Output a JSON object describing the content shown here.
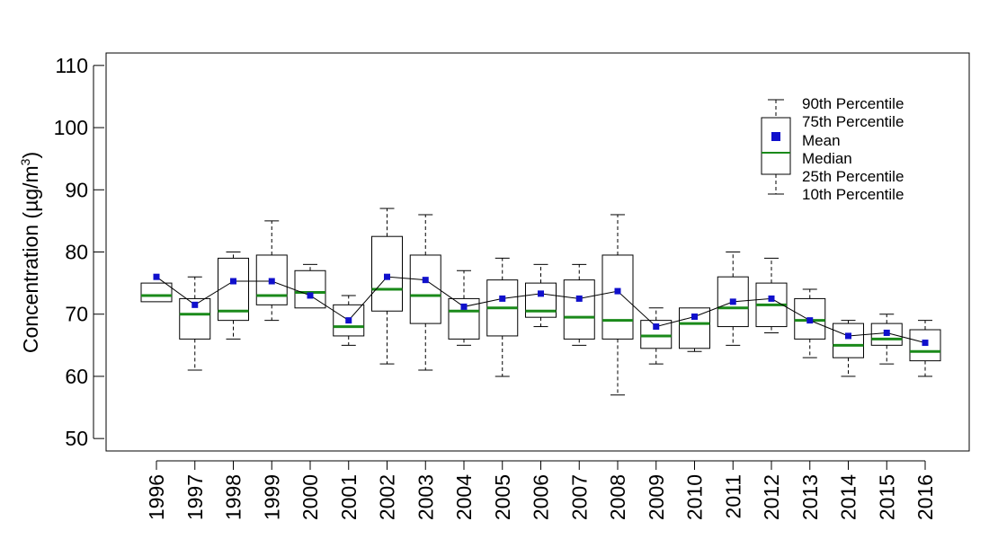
{
  "chart_data": {
    "type": "box",
    "title": "",
    "xlabel": "",
    "ylabel": "Concentration (µg/m",
    "ylabel_superscript": "3",
    "ylabel_close": ")",
    "ylim": [
      48,
      112
    ],
    "yticks": [
      50,
      60,
      70,
      80,
      90,
      100,
      110
    ],
    "categories": [
      "1996",
      "1997",
      "1998",
      "1999",
      "2000",
      "2001",
      "2002",
      "2003",
      "2004",
      "2005",
      "2006",
      "2007",
      "2008",
      "2009",
      "2010",
      "2011",
      "2012",
      "2013",
      "2014",
      "2015",
      "2016"
    ],
    "p10": [
      72,
      61,
      66,
      69,
      71,
      65,
      62,
      61,
      65,
      60,
      68,
      65,
      57,
      62,
      64,
      65,
      67,
      63,
      60,
      62,
      60
    ],
    "p25": [
      72,
      66,
      69,
      71.5,
      71,
      66.5,
      70.5,
      68.5,
      66,
      66.5,
      69.5,
      66,
      66,
      64.5,
      64.5,
      68,
      68,
      66,
      63,
      65,
      62.5
    ],
    "median": [
      73,
      70,
      70.5,
      73,
      73.5,
      68,
      74,
      73,
      70.5,
      71,
      70.5,
      69.5,
      69,
      66.5,
      68.5,
      71,
      71.5,
      69,
      65,
      66,
      64
    ],
    "p75": [
      75,
      72.5,
      79,
      79.5,
      77,
      71.5,
      82.5,
      79.5,
      72.5,
      75.5,
      75,
      75.5,
      79.5,
      69,
      71,
      76,
      75,
      72.5,
      68.5,
      68.5,
      67.5
    ],
    "p90": [
      75,
      76,
      80,
      85,
      78,
      73,
      87,
      86,
      77,
      79,
      78,
      78,
      86,
      71,
      71,
      80,
      79,
      74,
      69,
      70,
      69
    ],
    "mean": [
      76,
      71.5,
      75.3,
      75.3,
      73,
      69,
      76,
      75.5,
      71.2,
      72.5,
      73.3,
      72.5,
      73.7,
      68,
      69.6,
      72,
      72.5,
      69,
      66.5,
      67,
      65.4
    ],
    "legend": {
      "placement": "top-right",
      "entries": [
        "90th Percentile",
        "75th Percentile",
        "Mean",
        "Median",
        "25th Percentile",
        "10th Percentile"
      ]
    },
    "colors": {
      "median": "#1a8a1a",
      "mean": "#1010cc",
      "box": "#000000",
      "line": "#000000"
    }
  }
}
